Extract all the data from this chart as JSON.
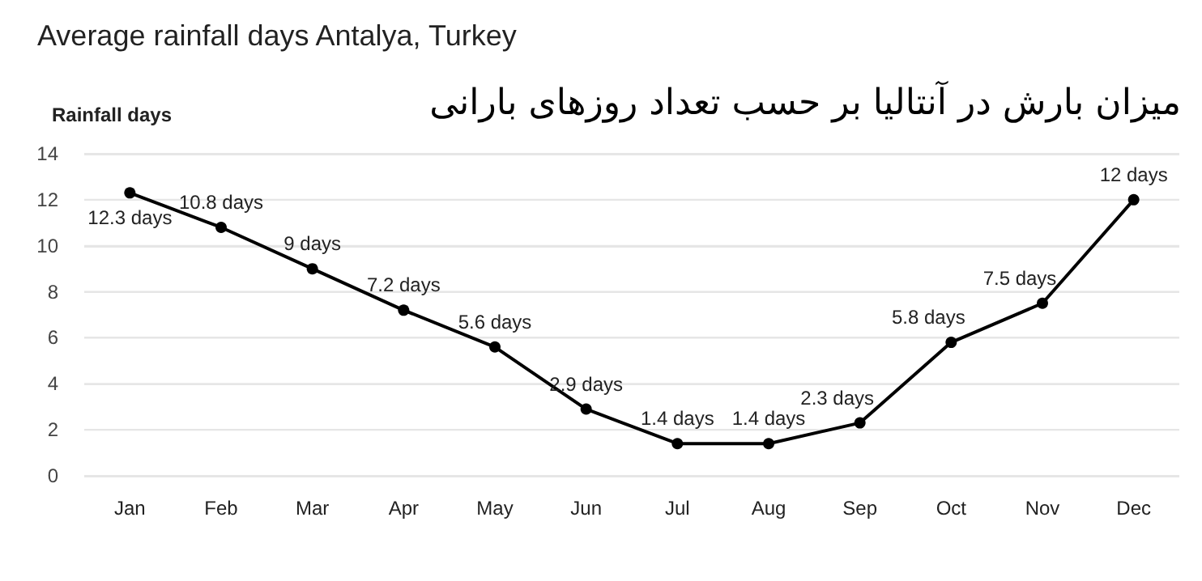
{
  "chart_data": {
    "type": "line",
    "title": "Average rainfall days Antalya, Turkey",
    "subtitle": "میزان بارش در آنتالیا بر حسب تعداد روزهای بارانی",
    "ylabel": "Rainfall days",
    "categories": [
      "Jan",
      "Feb",
      "Mar",
      "Apr",
      "May",
      "Jun",
      "Jul",
      "Aug",
      "Sep",
      "Oct",
      "Nov",
      "Dec"
    ],
    "series": [
      {
        "color": "#000000",
        "values": [
          12.3,
          10.8,
          9,
          7.2,
          5.6,
          2.9,
          1.4,
          1.4,
          2.3,
          5.8,
          7.5,
          12
        ],
        "value_labels": [
          "12.3 days",
          "10.8 days",
          "9 days",
          "7.2 days",
          "5.6 days",
          "2.9 days",
          "1.4 days",
          "1.4 days",
          "2.3 days",
          "5.8 days",
          "7.5 days",
          "12 days"
        ]
      }
    ],
    "ylim": [
      0,
      14
    ],
    "yticks": [
      0,
      2,
      4,
      6,
      8,
      10,
      12,
      14
    ],
    "grid": "y",
    "marker": "circle",
    "line_style": "solid"
  }
}
